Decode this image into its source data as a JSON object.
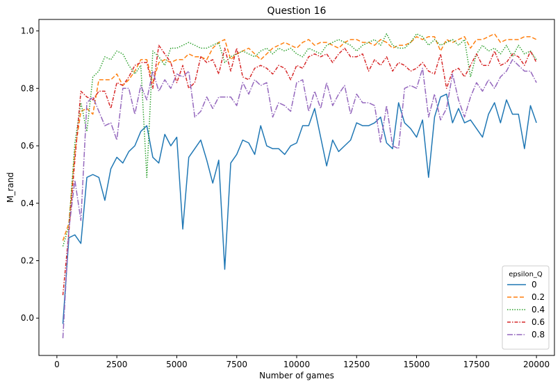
{
  "chart_data": {
    "type": "line",
    "title": "Question 16",
    "xlabel": "Number of games",
    "ylabel": "M_rand",
    "xlim": [
      -750,
      20750
    ],
    "ylim": [
      -0.13,
      1.04
    ],
    "xticks": [
      0,
      2500,
      5000,
      7500,
      10000,
      12500,
      15000,
      17500,
      20000
    ],
    "yticks": [
      0.0,
      0.2,
      0.4,
      0.6,
      0.8,
      1.0
    ],
    "grid": false,
    "legend": {
      "title": "epsilon_Q",
      "placement": "lower-right"
    },
    "x": [
      250,
      500,
      750,
      1000,
      1250,
      1500,
      1750,
      2000,
      2250,
      2500,
      2750,
      3000,
      3250,
      3500,
      3750,
      4000,
      4250,
      4500,
      4750,
      5000,
      5250,
      5500,
      5750,
      6000,
      6250,
      6500,
      6750,
      7000,
      7250,
      7500,
      7750,
      8000,
      8250,
      8500,
      8750,
      9000,
      9250,
      9500,
      9750,
      10000,
      10250,
      10500,
      10750,
      11000,
      11250,
      11500,
      11750,
      12000,
      12250,
      12500,
      12750,
      13000,
      13250,
      13500,
      13750,
      14000,
      14250,
      14500,
      14750,
      15000,
      15250,
      15500,
      15750,
      16000,
      16250,
      16500,
      16750,
      17000,
      17250,
      17500,
      17750,
      18000,
      18250,
      18500,
      18750,
      19000,
      19250,
      19500,
      19750,
      20000
    ],
    "series": [
      {
        "name": "0",
        "color": "#1f77b4",
        "dash": "",
        "values": [
          -0.02,
          0.28,
          0.29,
          0.26,
          0.49,
          0.5,
          0.49,
          0.41,
          0.52,
          0.56,
          0.54,
          0.58,
          0.6,
          0.65,
          0.67,
          0.56,
          0.54,
          0.64,
          0.6,
          0.63,
          0.31,
          0.56,
          0.59,
          0.62,
          0.55,
          0.47,
          0.55,
          0.17,
          0.54,
          0.57,
          0.62,
          0.61,
          0.57,
          0.67,
          0.6,
          0.59,
          0.59,
          0.57,
          0.6,
          0.61,
          0.67,
          0.67,
          0.73,
          0.63,
          0.53,
          0.62,
          0.58,
          0.6,
          0.62,
          0.68,
          0.67,
          0.67,
          0.68,
          0.7,
          0.61,
          0.59,
          0.75,
          0.68,
          0.66,
          0.63,
          0.69,
          0.49,
          0.7,
          0.77,
          0.78,
          0.68,
          0.73,
          0.68,
          0.69,
          0.66,
          0.63,
          0.71,
          0.75,
          0.68,
          0.76,
          0.71,
          0.71,
          0.59,
          0.74,
          0.68
        ]
      },
      {
        "name": "0.2",
        "color": "#ff7f0e",
        "dash": "6,3",
        "values": [
          0.27,
          0.33,
          0.58,
          0.72,
          0.73,
          0.71,
          0.83,
          0.83,
          0.83,
          0.85,
          0.81,
          0.83,
          0.86,
          0.9,
          0.9,
          0.82,
          0.89,
          0.9,
          0.89,
          0.9,
          0.9,
          0.92,
          0.91,
          0.91,
          0.9,
          0.94,
          0.96,
          0.97,
          0.9,
          0.92,
          0.93,
          0.94,
          0.92,
          0.9,
          0.92,
          0.94,
          0.95,
          0.96,
          0.95,
          0.94,
          0.96,
          0.97,
          0.95,
          0.96,
          0.96,
          0.95,
          0.94,
          0.96,
          0.97,
          0.97,
          0.96,
          0.96,
          0.95,
          0.97,
          0.96,
          0.94,
          0.95,
          0.95,
          0.96,
          0.98,
          0.97,
          0.98,
          0.98,
          0.93,
          0.97,
          0.96,
          0.97,
          0.98,
          0.94,
          0.97,
          0.97,
          0.98,
          0.99,
          0.96,
          0.97,
          0.97,
          0.97,
          0.98,
          0.98,
          0.97
        ]
      },
      {
        "name": "0.4",
        "color": "#2ca02c",
        "dash": "1.5,2",
        "values": [
          0.25,
          0.32,
          0.61,
          0.75,
          0.65,
          0.84,
          0.86,
          0.91,
          0.9,
          0.93,
          0.92,
          0.88,
          0.85,
          0.88,
          0.49,
          0.93,
          0.91,
          0.88,
          0.94,
          0.94,
          0.95,
          0.96,
          0.95,
          0.94,
          0.94,
          0.95,
          0.96,
          0.89,
          0.91,
          0.92,
          0.93,
          0.92,
          0.91,
          0.93,
          0.94,
          0.92,
          0.94,
          0.93,
          0.94,
          0.92,
          0.91,
          0.94,
          0.93,
          0.92,
          0.95,
          0.96,
          0.97,
          0.96,
          0.95,
          0.93,
          0.95,
          0.96,
          0.97,
          0.95,
          0.99,
          0.95,
          0.94,
          0.94,
          0.96,
          0.99,
          0.98,
          0.95,
          0.97,
          0.95,
          0.96,
          0.97,
          0.95,
          0.97,
          0.84,
          0.92,
          0.95,
          0.93,
          0.94,
          0.92,
          0.95,
          0.91,
          0.95,
          0.92,
          0.93,
          0.9
        ]
      },
      {
        "name": "0.6",
        "color": "#d62728",
        "dash": "5,2,1.5,2",
        "values": [
          0.08,
          0.3,
          0.55,
          0.79,
          0.77,
          0.76,
          0.79,
          0.79,
          0.73,
          0.82,
          0.81,
          0.84,
          0.88,
          0.89,
          0.89,
          0.8,
          0.95,
          0.92,
          0.89,
          0.82,
          0.88,
          0.8,
          0.82,
          0.91,
          0.89,
          0.9,
          0.85,
          0.94,
          0.86,
          0.94,
          0.84,
          0.83,
          0.87,
          0.88,
          0.87,
          0.85,
          0.88,
          0.87,
          0.83,
          0.88,
          0.87,
          0.91,
          0.92,
          0.91,
          0.92,
          0.89,
          0.92,
          0.94,
          0.91,
          0.91,
          0.92,
          0.86,
          0.9,
          0.88,
          0.91,
          0.86,
          0.89,
          0.88,
          0.86,
          0.87,
          0.89,
          0.86,
          0.85,
          0.92,
          0.8,
          0.86,
          0.87,
          0.84,
          0.88,
          0.92,
          0.88,
          0.88,
          0.93,
          0.88,
          0.89,
          0.92,
          0.91,
          0.88,
          0.93,
          0.89
        ]
      },
      {
        "name": "0.8",
        "color": "#9467bd",
        "dash": "8,2,1.5,2",
        "values": [
          -0.07,
          0.31,
          0.48,
          0.34,
          0.75,
          0.77,
          0.72,
          0.67,
          0.68,
          0.62,
          0.8,
          0.8,
          0.71,
          0.81,
          0.76,
          0.86,
          0.79,
          0.83,
          0.8,
          0.85,
          0.84,
          0.86,
          0.7,
          0.72,
          0.77,
          0.73,
          0.77,
          0.77,
          0.77,
          0.74,
          0.82,
          0.78,
          0.83,
          0.81,
          0.82,
          0.7,
          0.75,
          0.74,
          0.72,
          0.82,
          0.83,
          0.72,
          0.79,
          0.73,
          0.82,
          0.74,
          0.78,
          0.81,
          0.71,
          0.78,
          0.75,
          0.75,
          0.74,
          0.61,
          0.74,
          0.6,
          0.59,
          0.8,
          0.81,
          0.8,
          0.87,
          0.7,
          0.78,
          0.69,
          0.73,
          0.85,
          0.76,
          0.7,
          0.77,
          0.82,
          0.79,
          0.83,
          0.8,
          0.84,
          0.86,
          0.9,
          0.88,
          0.86,
          0.86,
          0.82
        ]
      }
    ]
  }
}
